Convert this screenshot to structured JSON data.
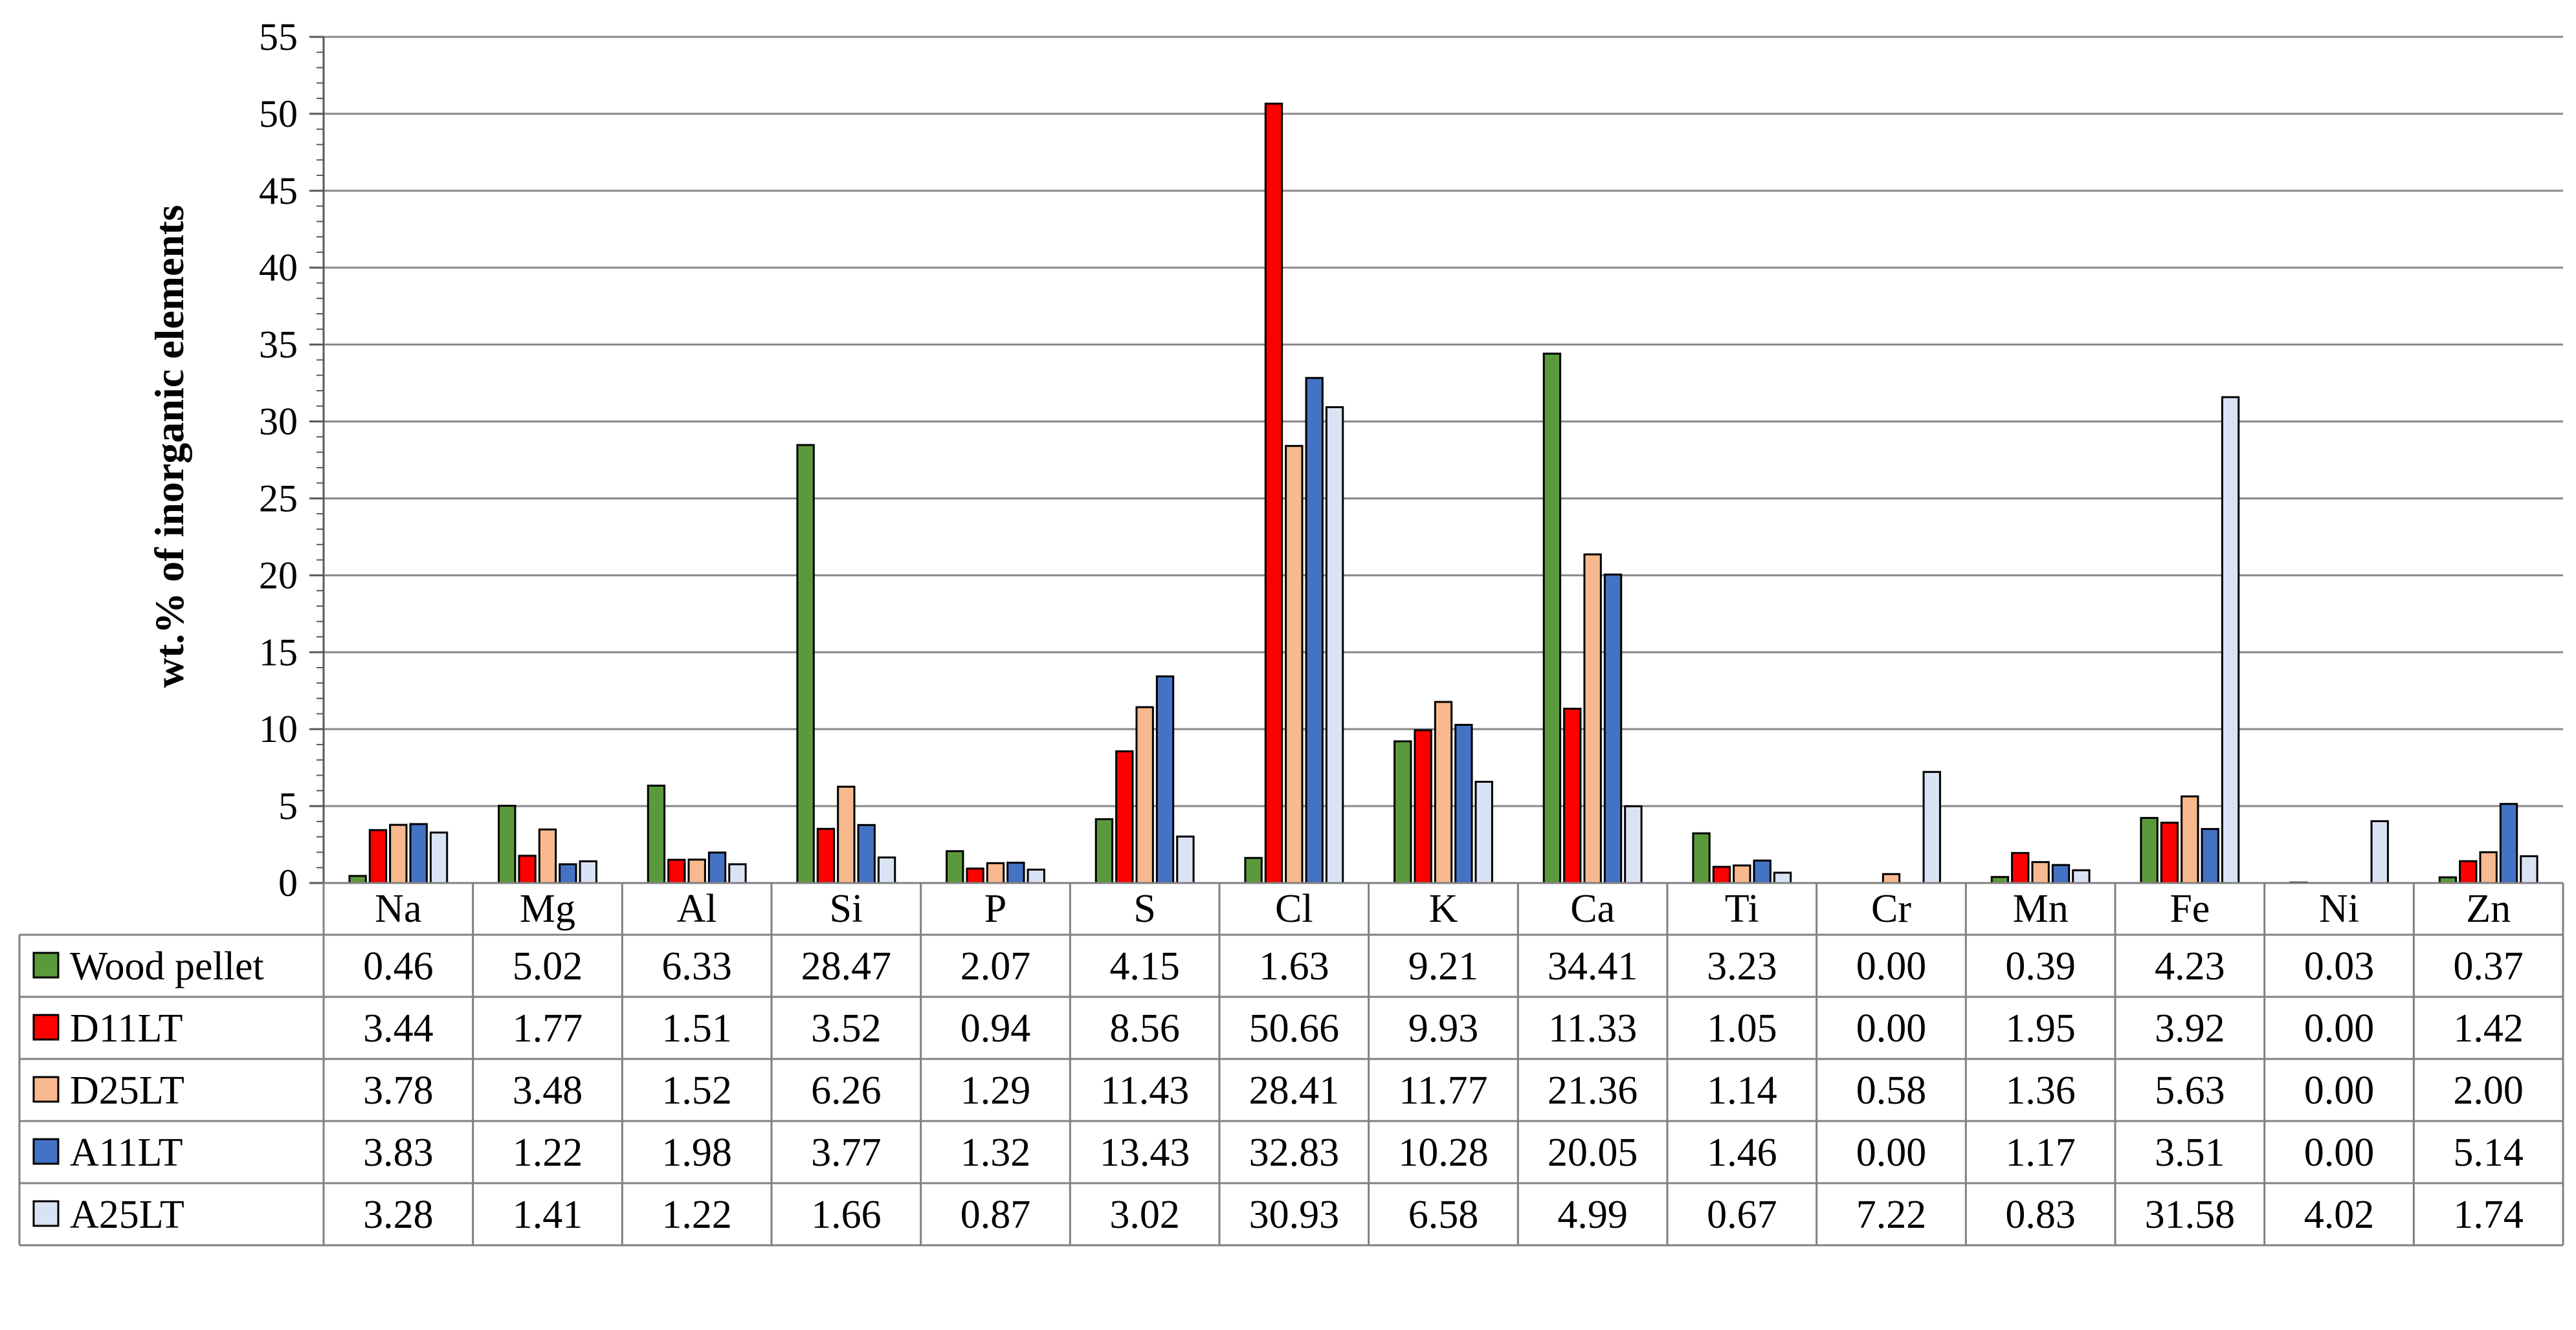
{
  "chart_data": {
    "type": "bar",
    "title": "",
    "xlabel": "",
    "ylabel": "wt.% of inorganic elements",
    "ylim": [
      0,
      55
    ],
    "yticks": [
      "0",
      "5",
      "10",
      "15",
      "20",
      "25",
      "30",
      "35",
      "40",
      "45",
      "50",
      "55"
    ],
    "grid": true,
    "legend": "data-table",
    "categories": [
      "Na",
      "Mg",
      "Al",
      "Si",
      "P",
      "S",
      "Cl",
      "K",
      "Ca",
      "Ti",
      "Cr",
      "Mn",
      "Fe",
      "Ni",
      "Zn"
    ],
    "series": [
      {
        "name": "Wood pellet",
        "color": "#5b9a3c",
        "values": [
          0.46,
          5.02,
          6.33,
          28.47,
          2.07,
          4.15,
          1.63,
          9.21,
          34.41,
          3.23,
          0.0,
          0.39,
          4.23,
          0.03,
          0.37
        ],
        "labels": [
          "0.46",
          "5.02",
          "6.33",
          "28.47",
          "2.07",
          "4.15",
          "1.63",
          "9.21",
          "34.41",
          "3.23",
          "0.00",
          "0.39",
          "4.23",
          "0.03",
          "0.37"
        ]
      },
      {
        "name": "D11LT",
        "color": "#ff0000",
        "values": [
          3.44,
          1.77,
          1.51,
          3.52,
          0.94,
          8.56,
          50.66,
          9.93,
          11.33,
          1.05,
          0.0,
          1.95,
          3.92,
          0.0,
          1.42
        ],
        "labels": [
          "3.44",
          "1.77",
          "1.51",
          "3.52",
          "0.94",
          "8.56",
          "50.66",
          "9.93",
          "11.33",
          "1.05",
          "0.00",
          "1.95",
          "3.92",
          "0.00",
          "1.42"
        ]
      },
      {
        "name": "D25LT",
        "color": "#f8b98e",
        "values": [
          3.78,
          3.48,
          1.52,
          6.26,
          1.29,
          11.43,
          28.41,
          11.77,
          21.36,
          1.14,
          0.58,
          1.36,
          5.63,
          0.0,
          2.0
        ],
        "labels": [
          "3.78",
          "3.48",
          "1.52",
          "6.26",
          "1.29",
          "11.43",
          "28.41",
          "11.77",
          "21.36",
          "1.14",
          "0.58",
          "1.36",
          "5.63",
          "0.00",
          "2.00"
        ]
      },
      {
        "name": "A11LT",
        "color": "#4472c4",
        "values": [
          3.83,
          1.22,
          1.98,
          3.77,
          1.32,
          13.43,
          32.83,
          10.28,
          20.05,
          1.46,
          0.0,
          1.17,
          3.51,
          0.0,
          5.14
        ],
        "labels": [
          "3.83",
          "1.22",
          "1.98",
          "3.77",
          "1.32",
          "13.43",
          "32.83",
          "10.28",
          "20.05",
          "1.46",
          "0.00",
          "1.17",
          "3.51",
          "0.00",
          "5.14"
        ]
      },
      {
        "name": "A25LT",
        "color": "#dae3f3",
        "values": [
          3.28,
          1.41,
          1.22,
          1.66,
          0.87,
          3.02,
          30.93,
          6.58,
          4.99,
          0.67,
          7.22,
          0.83,
          31.58,
          4.02,
          1.74
        ],
        "labels": [
          "3.28",
          "1.41",
          "1.22",
          "1.66",
          "0.87",
          "3.02",
          "30.93",
          "6.58",
          "4.99",
          "0.67",
          "7.22",
          "0.83",
          "31.58",
          "4.02",
          "1.74"
        ]
      }
    ]
  }
}
